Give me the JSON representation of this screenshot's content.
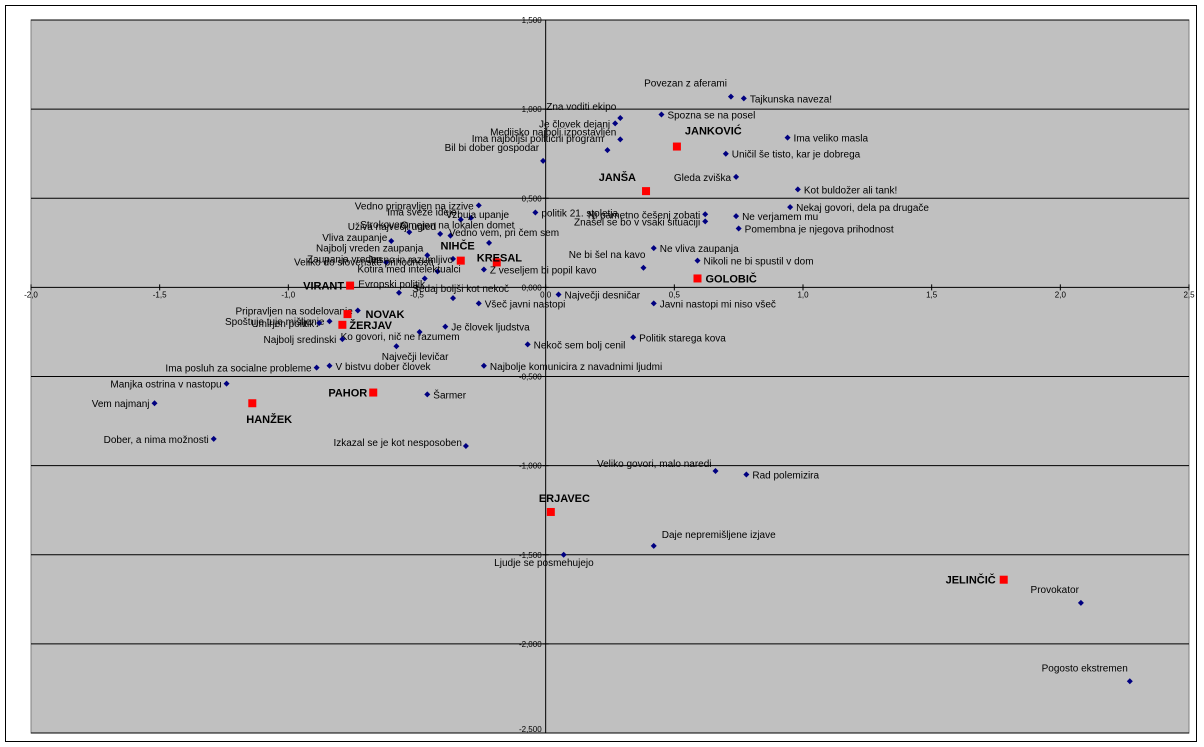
{
  "chart_data": {
    "type": "scatter",
    "xlim": [
      -2.0,
      2.5
    ],
    "ylim": [
      -2.5,
      1.5
    ],
    "x_ticks": [
      "-2,0",
      "-1,5",
      "-1,0",
      "-0,5",
      "0,0",
      "0,5",
      "1,0",
      "1,5",
      "2,0",
      "2,5"
    ],
    "y_ticks": [
      "1,500",
      "1,000",
      "0,500",
      "0,000",
      "-0,500",
      "-1,000",
      "-1,500",
      "-2,000",
      "-2,500"
    ],
    "grid": "horizontal",
    "colors": {
      "plot_bg": "#c0c0c0",
      "attribute_marker": "#000080",
      "candidate_marker": "#ff0000",
      "gridline": "#000000"
    },
    "attributes": [
      {
        "label": "Povezan z aferami",
        "x": 0.72,
        "y": 1.07
      },
      {
        "label": "Tajkunska naveza!",
        "x": 0.77,
        "y": 1.06
      },
      {
        "label": "Zna voditi ekipo",
        "x": 0.29,
        "y": 0.95
      },
      {
        "label": "Spozna se na posel",
        "x": 0.45,
        "y": 0.97
      },
      {
        "label": "Je človek dejanj",
        "x": 0.27,
        "y": 0.92
      },
      {
        "label": "Medijsko najbolj izpostavljen",
        "x": 0.29,
        "y": 0.83
      },
      {
        "label": "Ima veliko masla",
        "x": 0.94,
        "y": 0.84
      },
      {
        "label": "Bil bi dober gospodar",
        "x": -0.01,
        "y": 0.71
      },
      {
        "label": "Uničil še tisto, kar je dobrega",
        "x": 0.7,
        "y": 0.75
      },
      {
        "label": "Gleda zviška",
        "x": 0.74,
        "y": 0.62
      },
      {
        "label": "Kot buldožer ali tank!",
        "x": 0.98,
        "y": 0.55
      },
      {
        "label": "Ima najboljši politični program",
        "x": 0.24,
        "y": 0.77
      },
      {
        "label": "Vedno pripravljen na izzive",
        "x": -0.26,
        "y": 0.46
      },
      {
        "label": "Nekaj govori, dela pa drugače",
        "x": 0.95,
        "y": 0.45
      },
      {
        "label": "Vzbuja upanje",
        "x": -0.29,
        "y": 0.39
      },
      {
        "label": "Ima sveže ideje",
        "x": -0.33,
        "y": 0.38
      },
      {
        "label": "politik 21. stoletja",
        "x": -0.04,
        "y": 0.42
      },
      {
        "label": "Ni pametno češenj zobati",
        "x": 0.62,
        "y": 0.41
      },
      {
        "label": "Ne verjamem mu",
        "x": 0.74,
        "y": 0.4
      },
      {
        "label": "Uživa največji ugled",
        "x": -0.41,
        "y": 0.3
      },
      {
        "label": "Znašel se bo v vsaki situaciji",
        "x": 0.62,
        "y": 0.37
      },
      {
        "label": "Pomembna je njegova prihodnost",
        "x": 0.75,
        "y": 0.33
      },
      {
        "label": "Strokoven",
        "x": -0.53,
        "y": 0.31
      },
      {
        "label": "Omejen na lokalen domet",
        "x": -0.37,
        "y": 0.29
      },
      {
        "label": "Vliva zaupanje",
        "x": -0.6,
        "y": 0.26
      },
      {
        "label": "Ne vliva zaupanja",
        "x": 0.42,
        "y": 0.22
      },
      {
        "label": "Vedno vem, pri čem sem",
        "x": -0.22,
        "y": 0.25
      },
      {
        "label": "Najbolj vreden zaupanja",
        "x": -0.46,
        "y": 0.18
      },
      {
        "label": "Jasno in razumljivo",
        "x": -0.36,
        "y": 0.16
      },
      {
        "label": "Zaupanja vreden",
        "x": -0.62,
        "y": 0.14
      },
      {
        "label": "Nikoli ne bi spustil v dom",
        "x": 0.59,
        "y": 0.15
      },
      {
        "label": "Ne bi šel na kavo",
        "x": 0.38,
        "y": 0.11
      },
      {
        "label": "Z veseljem bi popil kavo",
        "x": -0.24,
        "y": 0.1
      },
      {
        "label": "Veliko do slovenske prihodnosti",
        "x": -0.42,
        "y": 0.09
      },
      {
        "label": "Kotira med intelektualci",
        "x": -0.47,
        "y": 0.05
      },
      {
        "label": "Največji desničar",
        "x": 0.05,
        "y": -0.04
      },
      {
        "label": "Evropski politik",
        "x": -0.57,
        "y": -0.03
      },
      {
        "label": "Sedaj boljši kot nekoč",
        "x": -0.36,
        "y": -0.06
      },
      {
        "label": "Javni nastopi mi niso všeč",
        "x": 0.42,
        "y": -0.09
      },
      {
        "label": "Pripravljen na sodelovanje",
        "x": -0.73,
        "y": -0.13
      },
      {
        "label": "Všeč javni nastopi",
        "x": -0.26,
        "y": -0.09
      },
      {
        "label": "Spoštuje tuje mišljenje",
        "x": -0.84,
        "y": -0.19
      },
      {
        "label": "Je človek ljudstva",
        "x": -0.39,
        "y": -0.22
      },
      {
        "label": "Umirjen politik",
        "x": -0.88,
        "y": -0.2
      },
      {
        "label": "Ko govori, nič ne razumem",
        "x": -0.49,
        "y": -0.25
      },
      {
        "label": "Najbolj sredinski",
        "x": -0.79,
        "y": -0.29
      },
      {
        "label": "Politik starega kova",
        "x": 0.34,
        "y": -0.28
      },
      {
        "label": "Največji levičar",
        "x": -0.58,
        "y": -0.33
      },
      {
        "label": "Nekoč sem bolj cenil",
        "x": -0.07,
        "y": -0.32
      },
      {
        "label": "Ima posluh za socialne probleme",
        "x": -0.89,
        "y": -0.45
      },
      {
        "label": "V bistvu dober človek",
        "x": -0.84,
        "y": -0.44
      },
      {
        "label": "Najbolje komunicira z navadnimi ljudmi",
        "x": -0.24,
        "y": -0.44
      },
      {
        "label": "Manjka ostrina v nastopu",
        "x": -1.24,
        "y": -0.54
      },
      {
        "label": "Šarmer",
        "x": -0.46,
        "y": -0.6
      },
      {
        "label": "Vem najmanj",
        "x": -1.52,
        "y": -0.65
      },
      {
        "label": "Dober, a nima možnosti",
        "x": -1.29,
        "y": -0.85
      },
      {
        "label": "Izkazal se je kot nesposoben",
        "x": -0.31,
        "y": -0.89
      },
      {
        "label": "Veliko govori, malo naredi",
        "x": 0.66,
        "y": -1.03
      },
      {
        "label": "Rad polemizira",
        "x": 0.78,
        "y": -1.05
      },
      {
        "label": "Daje nepremišljene izjave",
        "x": 0.42,
        "y": -1.45
      },
      {
        "label": "Ljudje se posmehujejo",
        "x": 0.07,
        "y": -1.5
      },
      {
        "label": "Provokator",
        "x": 2.08,
        "y": -1.77
      },
      {
        "label": "Pogosto ekstremen",
        "x": 2.27,
        "y": -2.21
      }
    ],
    "candidates": [
      {
        "label": "JANKOVIĆ",
        "x": 0.51,
        "y": 0.79
      },
      {
        "label": "JANŠA",
        "x": 0.39,
        "y": 0.54
      },
      {
        "label": "NIHČE",
        "x": -0.33,
        "y": 0.15
      },
      {
        "label": "KRESAL",
        "x": -0.19,
        "y": 0.14
      },
      {
        "label": "GOLOBIČ",
        "x": 0.59,
        "y": 0.05
      },
      {
        "label": "VIRANT",
        "x": -0.76,
        "y": 0.01
      },
      {
        "label": "NOVAK",
        "x": -0.77,
        "y": -0.15
      },
      {
        "label": "ŽERJAV",
        "x": -0.79,
        "y": -0.21
      },
      {
        "label": "PAHOR",
        "x": -0.67,
        "y": -0.59
      },
      {
        "label": "HANŽEK",
        "x": -1.14,
        "y": -0.65
      },
      {
        "label": "ERJAVEC",
        "x": 0.02,
        "y": -1.26
      },
      {
        "label": "JELINČIČ",
        "x": 1.78,
        "y": -1.64
      }
    ]
  }
}
